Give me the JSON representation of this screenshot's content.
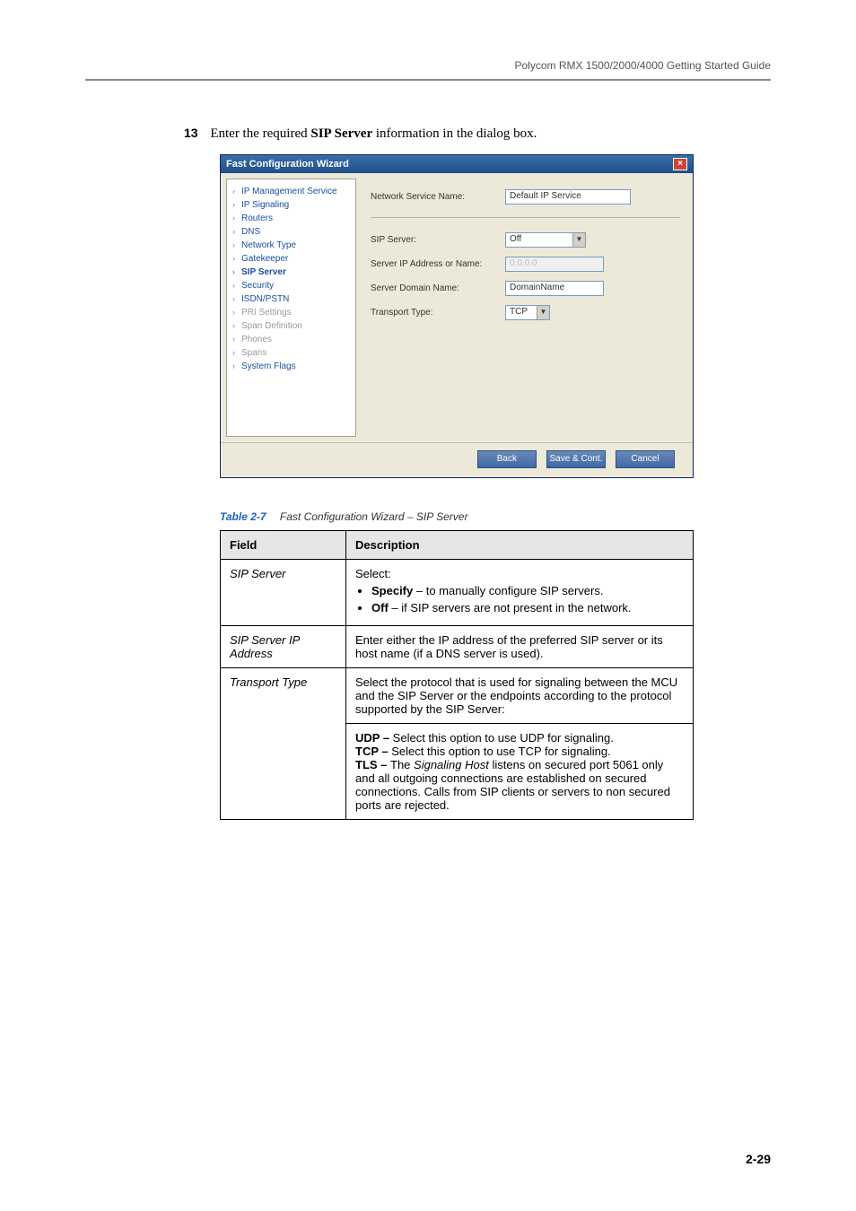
{
  "header": {
    "guide_title": "Polycom RMX 1500/2000/4000 Getting Started Guide"
  },
  "step": {
    "number": "13",
    "text_prefix": "Enter the required ",
    "bold_term": "SIP Server",
    "text_suffix": " information in the dialog box."
  },
  "dialog": {
    "title": "Fast Configuration Wizard",
    "nav": [
      {
        "label": "IP Management Service",
        "cls": "blue"
      },
      {
        "label": "IP Signaling",
        "cls": "blue"
      },
      {
        "label": "Routers",
        "cls": "blue"
      },
      {
        "label": "DNS",
        "cls": "blue"
      },
      {
        "label": "Network Type",
        "cls": "blue"
      },
      {
        "label": "Gatekeeper",
        "cls": "blue"
      },
      {
        "label": "SIP Server",
        "cls": "active"
      },
      {
        "label": "Security",
        "cls": "blue"
      },
      {
        "label": "ISDN/PSTN",
        "cls": "blue"
      },
      {
        "label": "PRI Settings",
        "cls": ""
      },
      {
        "label": "Span Definition",
        "cls": ""
      },
      {
        "label": "Phones",
        "cls": ""
      },
      {
        "label": "Spans",
        "cls": ""
      },
      {
        "label": "System Flags",
        "cls": "blue"
      }
    ],
    "fields": {
      "service_name_label": "Network Service Name:",
      "service_name_value": "Default IP Service",
      "sip_server_label": "SIP Server:",
      "sip_server_value": "Off",
      "server_ip_label": "Server IP Address or Name:",
      "server_ip_value": "0.0.0.0",
      "server_domain_label": "Server Domain Name:",
      "server_domain_value": "DomainName",
      "transport_label": "Transport Type:",
      "transport_value": "TCP"
    },
    "buttons": {
      "back": "Back",
      "save": "Save & Cont.",
      "cancel": "Cancel"
    }
  },
  "table": {
    "caption_num": "Table 2-7",
    "caption_desc": "Fast Configuration Wizard – SIP Server",
    "head_field": "Field",
    "head_desc": "Description",
    "rows": {
      "sip_server": {
        "field": "SIP Server",
        "intro": "Select:",
        "b1_bold": "Specify",
        "b1_rest": " – to manually configure SIP servers.",
        "b2_bold": "Off",
        "b2_rest": " – if SIP servers are not present in the network."
      },
      "sip_ip": {
        "field": "SIP Server IP Address",
        "desc": "Enter either the IP address of the preferred SIP server or its host name (if a DNS server is used)."
      },
      "transport": {
        "field": "Transport Type",
        "desc": "Select the protocol that is used for signaling between the MCU and the SIP Server or the endpoints according to the protocol supported by the SIP Server:"
      },
      "transport2": {
        "udp_b": "UDP – ",
        "udp_r": "Select this option to use UDP for signaling.",
        "tcp_b": "TCP – ",
        "tcp_r": "Select this option to use TCP for signaling.",
        "tls_b": "TLS – ",
        "tls_mid_pre": "The ",
        "tls_italic": "Signaling Host",
        "tls_rest": " listens on secured port 5061 only and all outgoing connections are established on secured connections. Calls from SIP clients or servers to non secured ports are rejected."
      }
    }
  },
  "page_number": "2-29"
}
